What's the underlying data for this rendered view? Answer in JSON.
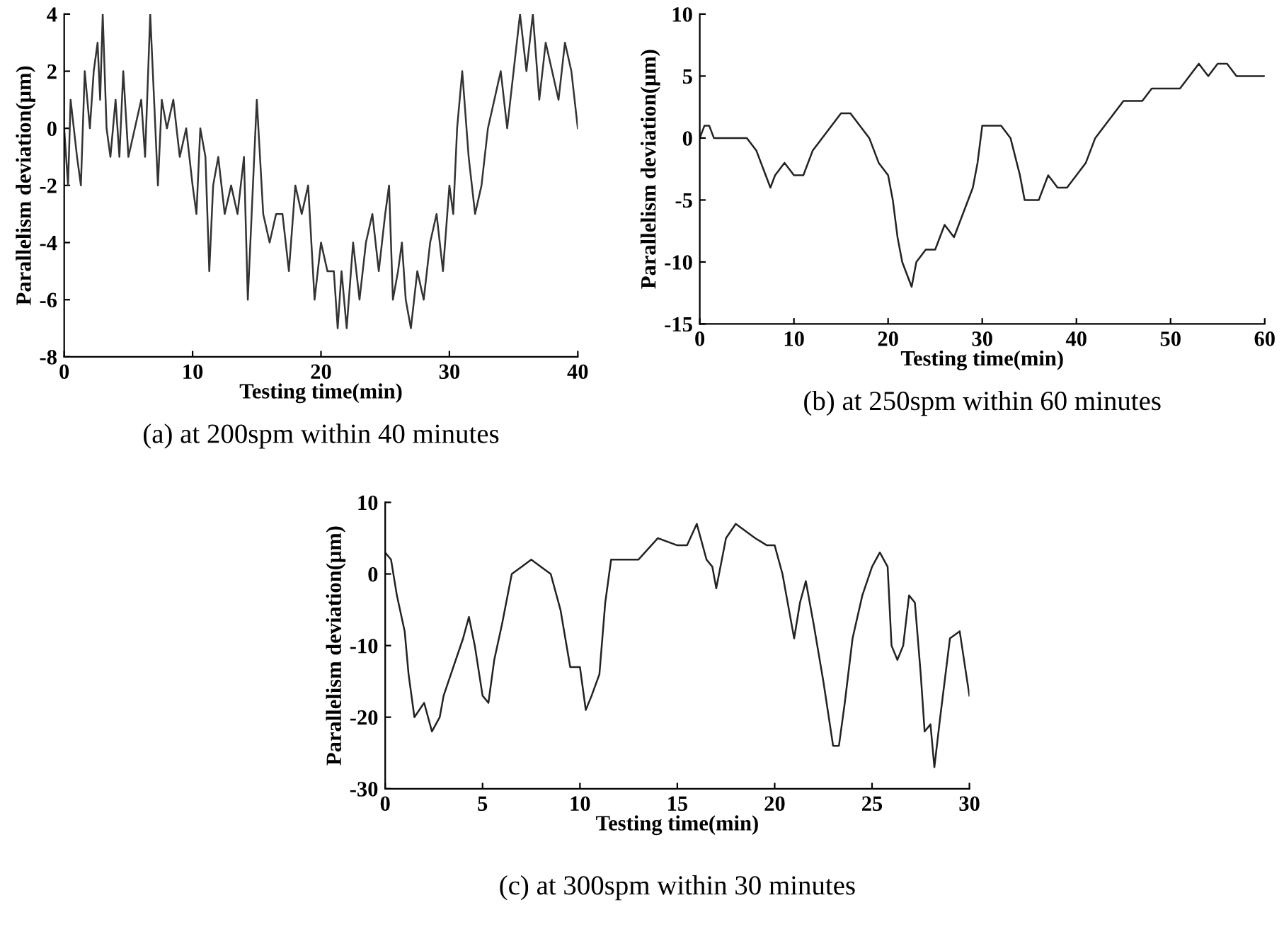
{
  "chart_data": [
    {
      "type": "line",
      "xlabel": "Testing time(min)",
      "ylabel": "Parallelism deviation(μm)",
      "annotations": [
        "(a) at 200spm within 40 minutes"
      ],
      "xlim": [
        0,
        40
      ],
      "xticks": [
        0,
        10,
        20,
        30,
        40
      ],
      "ylim": [
        -8,
        4
      ],
      "yticks": [
        -8,
        -6,
        -4,
        -2,
        0,
        2,
        4
      ],
      "grid": false,
      "legend": false,
      "series": [
        {
          "color": "#333333",
          "x": [
            0,
            0.3,
            0.5,
            1,
            1.3,
            1.6,
            2,
            2.3,
            2.6,
            2.8,
            3,
            3.3,
            3.6,
            4,
            4.3,
            4.6,
            5,
            5.5,
            6,
            6.3,
            6.7,
            7,
            7.3,
            7.6,
            8,
            8.5,
            9,
            9.5,
            10,
            10.3,
            10.6,
            11,
            11.3,
            11.6,
            12,
            12.5,
            13,
            13.5,
            14,
            14.3,
            14.6,
            15,
            15.5,
            16,
            16.5,
            17,
            17.5,
            18,
            18.5,
            19,
            19.5,
            20,
            20.5,
            21,
            21.3,
            21.6,
            22,
            22.5,
            23,
            23.5,
            24,
            24.5,
            25,
            25.3,
            25.6,
            26,
            26.3,
            26.6,
            27,
            27.5,
            28,
            28.5,
            29,
            29.5,
            30,
            30.3,
            30.6,
            31,
            31.5,
            32,
            32.5,
            33,
            33.5,
            34,
            34.5,
            35,
            35.5,
            36,
            36.5,
            37,
            37.5,
            38,
            38.5,
            39,
            39.5,
            40
          ],
          "values": [
            0,
            -2,
            1,
            -1,
            -2,
            2,
            0,
            2,
            3,
            1,
            4,
            0,
            -1,
            1,
            -1,
            2,
            -1,
            0,
            1,
            -1,
            4,
            1,
            -2,
            1,
            0,
            1,
            -1,
            0,
            -2,
            -3,
            0,
            -1,
            -5,
            -2,
            -1,
            -3,
            -2,
            -3,
            -1,
            -6,
            -3,
            1,
            -3,
            -4,
            -3,
            -3,
            -5,
            -2,
            -3,
            -2,
            -6,
            -4,
            -5,
            -5,
            -7,
            -5,
            -7,
            -4,
            -6,
            -4,
            -3,
            -5,
            -3,
            -2,
            -6,
            -5,
            -4,
            -6,
            -7,
            -5,
            -6,
            -4,
            -3,
            -5,
            -2,
            -3,
            0,
            2,
            -1,
            -3,
            -2,
            0,
            1,
            2,
            0,
            2,
            4,
            2,
            4,
            1,
            3,
            2,
            1,
            3,
            2,
            0
          ]
        }
      ]
    },
    {
      "type": "line",
      "xlabel": "Testing time(min)",
      "ylabel": "Parallelism deviation(μm)",
      "annotations": [
        "(b) at 250spm within 60 minutes"
      ],
      "xlim": [
        0,
        60
      ],
      "xticks": [
        0,
        10,
        20,
        30,
        40,
        50,
        60
      ],
      "ylim": [
        -15,
        10
      ],
      "yticks": [
        -15,
        -10,
        -5,
        0,
        5,
        10
      ],
      "grid": false,
      "legend": false,
      "series": [
        {
          "color": "#222222",
          "x": [
            0,
            0.5,
            1,
            1.5,
            2,
            3,
            4,
            5,
            6,
            7,
            7.5,
            8,
            9,
            10,
            11,
            12,
            13,
            14,
            15,
            16,
            17,
            18,
            19,
            20,
            20.5,
            21,
            21.5,
            22,
            22.5,
            23,
            24,
            25,
            25.5,
            26,
            27,
            28,
            29,
            29.5,
            30,
            31,
            32,
            33,
            34,
            34.5,
            35,
            36,
            37,
            38,
            39,
            40,
            41,
            42,
            43,
            44,
            45,
            46,
            47,
            48,
            49,
            50,
            51,
            52,
            53,
            54,
            55,
            56,
            57,
            58,
            59,
            60
          ],
          "values": [
            0,
            1,
            1,
            0,
            0,
            0,
            0,
            0,
            -1,
            -3,
            -4,
            -3,
            -2,
            -3,
            -3,
            -1,
            0,
            1,
            2,
            2,
            1,
            0,
            -2,
            -3,
            -5,
            -8,
            -10,
            -11,
            -12,
            -10,
            -9,
            -9,
            -8,
            -7,
            -8,
            -6,
            -4,
            -2,
            1,
            1,
            1,
            0,
            -3,
            -5,
            -5,
            -5,
            -3,
            -4,
            -4,
            -3,
            -2,
            0,
            1,
            2,
            3,
            3,
            3,
            4,
            4,
            4,
            4,
            5,
            6,
            5,
            6,
            6,
            5,
            5,
            5,
            5
          ]
        }
      ]
    },
    {
      "type": "line",
      "xlabel": "Testing time(min)",
      "ylabel": "Parallelism deviation(μm)",
      "annotations": [
        "(c) at 300spm within 30 minutes"
      ],
      "xlim": [
        0,
        30
      ],
      "xticks": [
        0,
        5,
        10,
        15,
        20,
        25,
        30
      ],
      "ylim": [
        -30,
        10
      ],
      "yticks": [
        -30,
        -20,
        -10,
        0,
        10
      ],
      "grid": false,
      "legend": false,
      "series": [
        {
          "color": "#222222",
          "x": [
            0,
            0.3,
            0.6,
            1,
            1.2,
            1.5,
            2,
            2.4,
            2.8,
            3,
            3.5,
            4,
            4.3,
            4.6,
            5,
            5.3,
            5.6,
            6,
            6.5,
            7,
            7.5,
            8,
            8.5,
            9,
            9.5,
            10,
            10.3,
            10.6,
            11,
            11.3,
            11.6,
            12,
            13,
            14,
            15,
            15.5,
            16,
            16.5,
            16.8,
            17,
            17.5,
            18,
            19,
            19.6,
            20,
            20.4,
            20.6,
            21,
            21.3,
            21.6,
            22,
            22.5,
            23,
            23.3,
            23.6,
            24,
            24.5,
            25,
            25.4,
            25.8,
            26,
            26.3,
            26.6,
            26.9,
            27.2,
            27.5,
            27.7,
            28,
            28.2,
            28.5,
            29,
            29.5,
            30
          ],
          "values": [
            3,
            2,
            -3,
            -8,
            -14,
            -20,
            -18,
            -22,
            -20,
            -17,
            -13,
            -9,
            -6,
            -10,
            -17,
            -18,
            -12,
            -7,
            0,
            1,
            2,
            1,
            0,
            -5,
            -13,
            -13,
            -19,
            -17,
            -14,
            -4,
            2,
            2,
            2,
            5,
            4,
            4,
            7,
            2,
            1,
            -2,
            5,
            7,
            5,
            4,
            4,
            0,
            -3,
            -9,
            -4,
            -1,
            -7,
            -15,
            -24,
            -24,
            -18,
            -9,
            -3,
            1,
            3,
            1,
            -10,
            -12,
            -10,
            -3,
            -4,
            -14,
            -22,
            -21,
            -27,
            -20,
            -9,
            -8,
            -17
          ]
        }
      ]
    }
  ]
}
